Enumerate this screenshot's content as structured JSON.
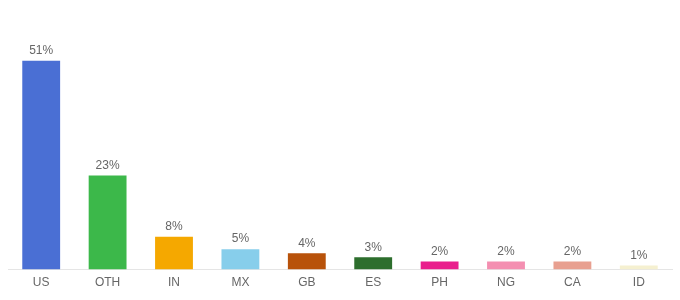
{
  "chart_data": {
    "type": "bar",
    "categories": [
      "US",
      "OTH",
      "IN",
      "MX",
      "GB",
      "ES",
      "PH",
      "NG",
      "CA",
      "ID"
    ],
    "values": [
      51,
      23,
      8,
      5,
      4,
      3,
      2,
      2,
      2,
      1
    ],
    "value_labels": [
      "51%",
      "23%",
      "8%",
      "5%",
      "4%",
      "3%",
      "2%",
      "2%",
      "2%",
      "1%"
    ],
    "colors": [
      "#4a6fd4",
      "#3cb84a",
      "#f5a800",
      "#87ceeb",
      "#b8520a",
      "#2d6e2d",
      "#e91e8c",
      "#f48fb1",
      "#e8a090",
      "#f5f0d0"
    ],
    "ylim": [
      0,
      60
    ],
    "grid": false,
    "data_labels": true,
    "tick_labels": "x"
  }
}
